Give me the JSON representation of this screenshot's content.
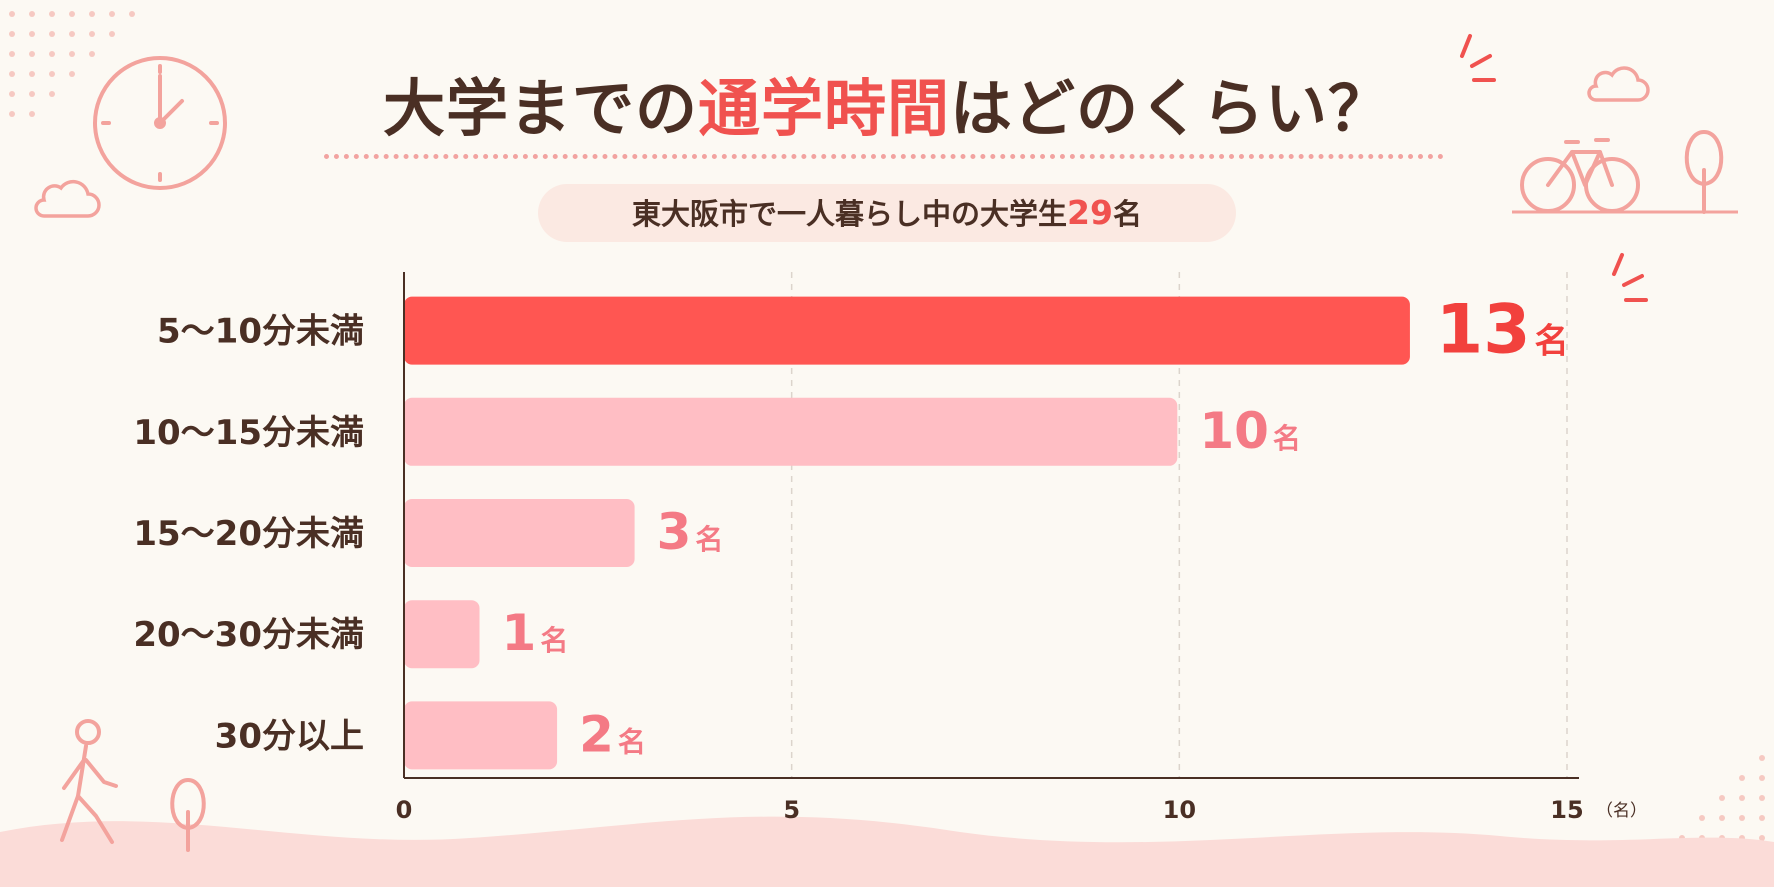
{
  "title": {
    "part1": "大学までの",
    "accent": "通学時間",
    "part2": "はどのくらい？"
  },
  "subtitle": {
    "prefix": "東大阪市で一人暮らし中の大学生",
    "count": "29",
    "suffix": "名"
  },
  "colors": {
    "highlight_bar": "#ff5652",
    "bar": "#ffbec4",
    "highlight_label": "#f2413d",
    "label": "#f47a85",
    "text": "#4a2f24"
  },
  "chart_data": {
    "type": "bar",
    "orientation": "horizontal",
    "categories": [
      "5〜10分未満",
      "10〜15分未満",
      "15〜20分未満",
      "20〜30分未満",
      "30分以上"
    ],
    "values": [
      13,
      10,
      3,
      1,
      2
    ],
    "value_unit": "名",
    "highlight_index": 0,
    "xlim": [
      0,
      15
    ],
    "xticks": [
      0,
      5,
      10,
      15
    ],
    "x_unit_label": "（名）",
    "grid": "vertical-dashed"
  },
  "icons": [
    "clock-icon",
    "cloud-icon",
    "bicycle-icon",
    "tree-icon",
    "walking-person-icon",
    "sparkle-icon"
  ]
}
